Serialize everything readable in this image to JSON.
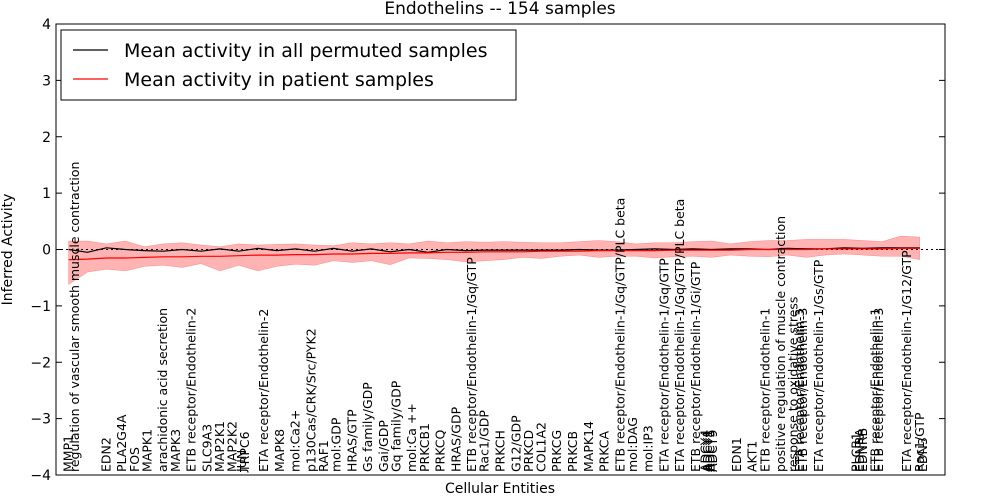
{
  "chart_data": {
    "type": "line",
    "title": "Endothelins -- 154 samples",
    "xlabel": "Cellular Entities",
    "ylabel": "Inferred Activity",
    "ylim": [
      -4,
      4
    ],
    "yticks": [
      "−4",
      "−3",
      "−2",
      "−1",
      "0",
      "1",
      "2",
      "3",
      "4"
    ],
    "legend": {
      "placement": "top-left",
      "entries": [
        {
          "name": "Mean activity in all permuted samples",
          "color": "#000000"
        },
        {
          "name": "Mean activity in patient samples",
          "color": "#ff0000"
        }
      ]
    },
    "band_color": "#ff9999",
    "entities": [
      "MMP1",
      "regulation of vascular smooth muscle contraction",
      "EDN2",
      "PLA2G4A",
      "FOS",
      "MAPK1",
      "arachidonic acid secretion",
      "MAPK3",
      "ETB receptor/Endothelin-2",
      "SLC9A3",
      "MAP2K1",
      "MAP2K2",
      "JUN",
      "TRPC6",
      "ETA receptor/Endothelin-2",
      "MAPK8",
      "mol:Ca2+",
      "p130Cas/CRK/Src/PYK2",
      "RAF1",
      "mol:GDP",
      "HRAS/GTP",
      "Gs family/GDP",
      "Gai/GDP",
      "Gq family/GDP",
      "mol:Ca ++",
      "PRKCB1",
      "PRKCQ",
      "HRAS/GDP",
      "ETB receptor/Endothelin-1/Gq/GTP",
      "Rac1/GDP",
      "PRKCH",
      "G12/GDP",
      "PRKCD",
      "COL1A2",
      "PRKCG",
      "PRKCB",
      "MAPK14",
      "PRKCA",
      "ETB receptor/Endothelin-1/Gq/GTP/PLC beta",
      "mol:DAG",
      "mol:IP3",
      "ETA receptor/Endothelin-1/Gq/GTP",
      "ETA receptor/Endothelin-1/Gq/GTP/PLC beta",
      "ETB receptor/Endothelin-1/Gi/GTP",
      "ADCY4",
      "ADCY1",
      "ADCY5",
      "ADCY9",
      "EDN1",
      "AKT1",
      "ETB receptor/Endothelin-1",
      "positive regulation of muscle contraction",
      "response to oxidative stress",
      "ETA receptor/Endothelin-3",
      "ETB receptor/Endothelin-3",
      "ETA receptor/Endothelin-1/Gs/GTP",
      "PLCB1",
      "EDNRA",
      "EDNRB",
      "ETB receptor/Endothelin-1",
      "ETB receptor/Endothelin-3",
      "ETA receptor/Endothelin-1/G12/GTP",
      "Rac1/GTP",
      "EDN3"
    ],
    "x": [
      0,
      1,
      6,
      8.5,
      10.5,
      12.5,
      15,
      17,
      19.5,
      22,
      24,
      26,
      27.5,
      28,
      31,
      33.5,
      36,
      38.5,
      40.5,
      42.5,
      45,
      47.5,
      50,
      52,
      54.5,
      56.5,
      59,
      61.5,
      64,
      66,
      68.5,
      71,
      73,
      75,
      77.5,
      80,
      82.5,
      85,
      87.5,
      89.5,
      92,
      94.5,
      97,
      99.5,
      101,
      101.4,
      101.8,
      102.2,
      106,
      108.5,
      110.5,
      113,
      115,
      116,
      116.5,
      119,
      125,
      125.5,
      126,
      128,
      128.5,
      133,
      135,
      135.5
    ],
    "x_range": [
      -2,
      139
    ],
    "series": [
      {
        "name": "Mean activity in all permuted samples",
        "x": [
          0,
          3,
          6,
          9,
          12,
          15,
          18,
          21,
          24,
          27,
          30,
          33,
          36,
          39,
          42,
          45,
          48,
          51,
          54,
          57,
          60,
          63,
          66,
          69,
          72,
          75,
          78,
          81,
          84,
          87,
          90,
          93,
          96,
          99,
          102,
          105,
          108,
          111,
          114,
          117,
          120,
          123,
          126,
          129,
          132,
          135
        ],
        "values": [
          0.0,
          -0.05,
          0.03,
          0.0,
          -0.02,
          -0.03,
          0.0,
          -0.03,
          0.01,
          -0.03,
          0.02,
          -0.02,
          0.01,
          -0.03,
          0.02,
          -0.03,
          0.01,
          -0.04,
          0.0,
          -0.05,
          0.0,
          -0.02,
          -0.01,
          -0.01,
          -0.01,
          -0.01,
          -0.01,
          0.0,
          -0.01,
          -0.01,
          0.0,
          0.01,
          0.0,
          0.01,
          0.0,
          0.01,
          0.01,
          0.0,
          0.02,
          0.01,
          0.01,
          0.03,
          0.02,
          0.03,
          0.03,
          0.03
        ]
      },
      {
        "name": "Mean activity in patient samples",
        "x": [
          0,
          3,
          6,
          9,
          12,
          15,
          18,
          21,
          24,
          27,
          30,
          33,
          36,
          39,
          42,
          45,
          48,
          51,
          54,
          57,
          60,
          63,
          66,
          69,
          72,
          75,
          78,
          81,
          84,
          87,
          90,
          93,
          96,
          99,
          102,
          105,
          108,
          111,
          114,
          117,
          120,
          123,
          126,
          129,
          132,
          135
        ],
        "values": [
          -0.18,
          -0.17,
          -0.15,
          -0.15,
          -0.14,
          -0.13,
          -0.13,
          -0.12,
          -0.12,
          -0.11,
          -0.1,
          -0.1,
          -0.09,
          -0.09,
          -0.08,
          -0.08,
          -0.07,
          -0.07,
          -0.06,
          -0.06,
          -0.05,
          -0.05,
          -0.04,
          -0.04,
          -0.04,
          -0.03,
          -0.03,
          -0.03,
          -0.02,
          -0.02,
          -0.02,
          -0.02,
          -0.01,
          -0.01,
          -0.01,
          -0.01,
          0.0,
          0.0,
          0.0,
          0.0,
          0.01,
          0.01,
          0.01,
          0.01,
          0.02,
          0.02
        ],
        "band_upper": [
          0.15,
          0.15,
          0.1,
          0.15,
          0.05,
          0.1,
          0.12,
          0.08,
          0.05,
          0.1,
          0.08,
          0.09,
          0.1,
          0.08,
          0.07,
          0.12,
          0.1,
          0.12,
          0.1,
          0.15,
          0.12,
          0.14,
          0.13,
          0.14,
          0.13,
          0.12,
          0.12,
          0.14,
          0.16,
          0.14,
          0.1,
          0.12,
          0.12,
          0.14,
          0.15,
          0.1,
          0.14,
          0.16,
          0.16,
          0.18,
          0.18,
          0.18,
          0.16,
          0.14,
          0.24,
          0.22
        ],
        "band_lower": [
          -0.62,
          -0.4,
          -0.35,
          -0.38,
          -0.3,
          -0.28,
          -0.32,
          -0.25,
          -0.38,
          -0.28,
          -0.38,
          -0.3,
          -0.26,
          -0.28,
          -0.2,
          -0.23,
          -0.2,
          -0.27,
          -0.15,
          -0.16,
          -0.18,
          -0.22,
          -0.2,
          -0.18,
          -0.14,
          -0.16,
          -0.12,
          -0.1,
          -0.14,
          -0.12,
          -0.12,
          -0.15,
          -0.13,
          -0.12,
          -0.14,
          -0.1,
          -0.12,
          -0.13,
          -0.1,
          -0.14,
          -0.1,
          -0.08,
          -0.1,
          -0.12,
          -0.12,
          -0.18
        ]
      }
    ]
  }
}
